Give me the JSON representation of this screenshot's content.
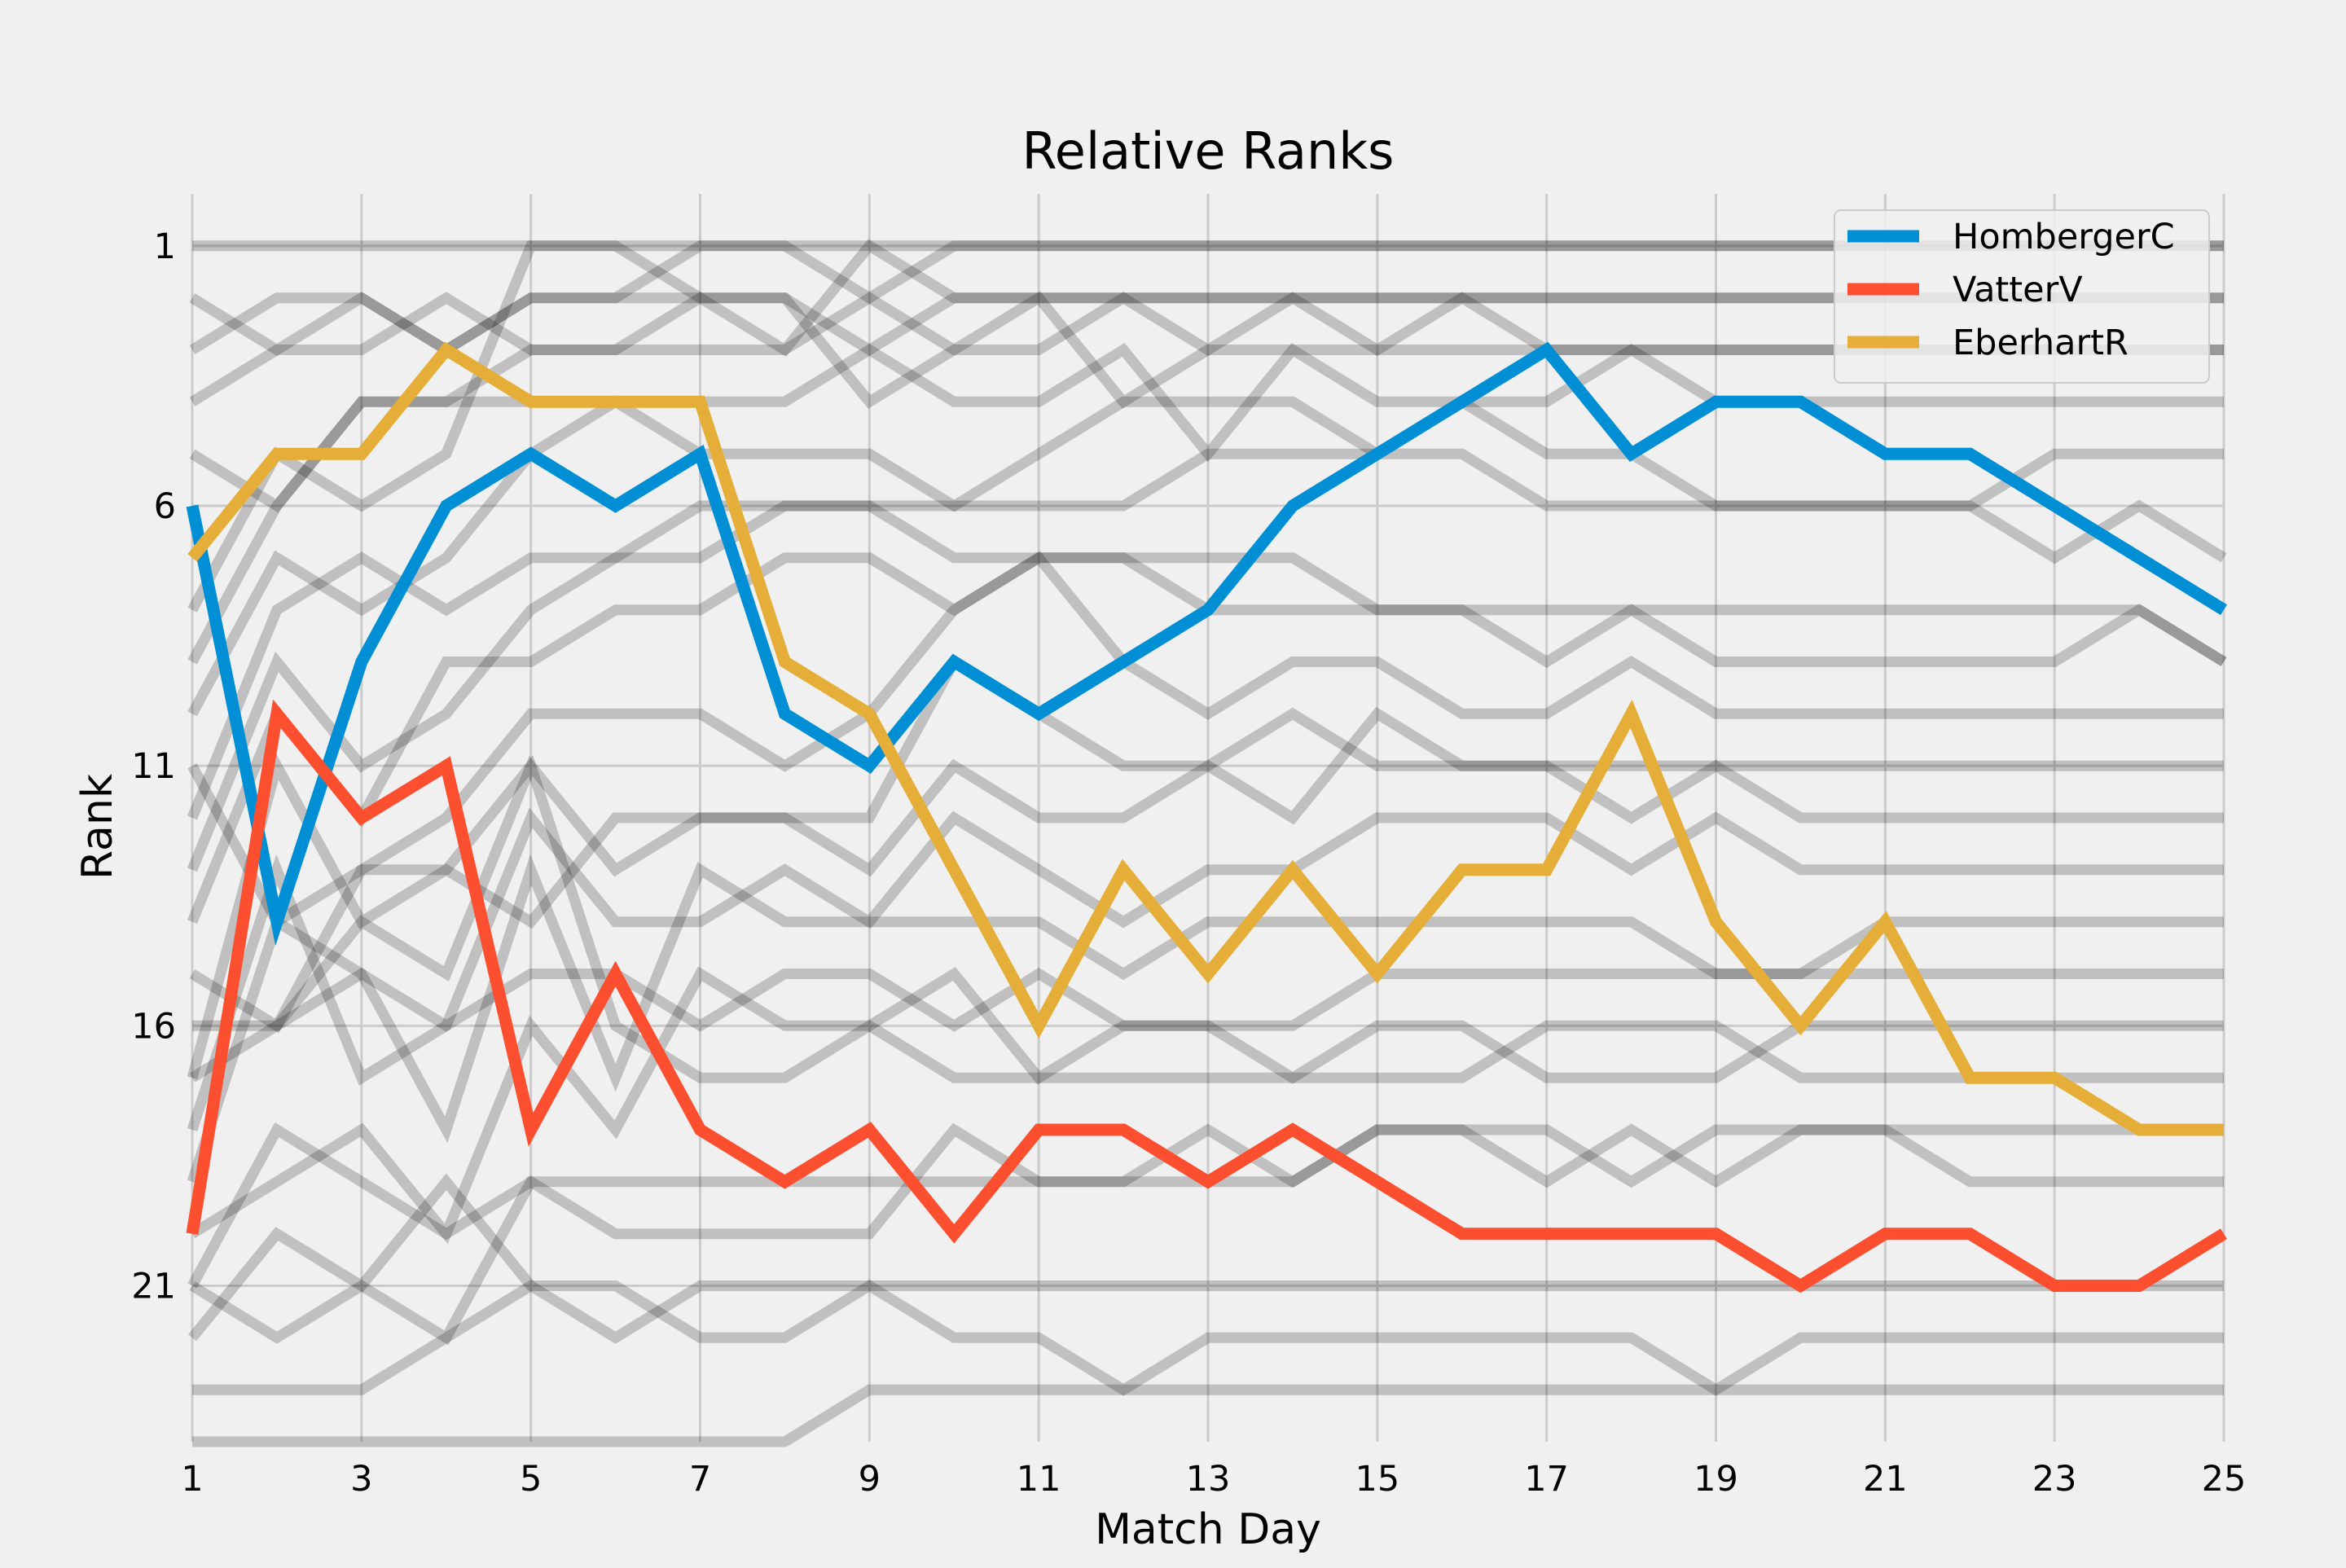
{
  "chart_data": {
    "type": "line",
    "title": "Relative Ranks",
    "xlabel": "Match Day",
    "ylabel": "Rank",
    "xlim": [
      1,
      25
    ],
    "ylim": [
      24,
      0
    ],
    "x_ticks": [
      1,
      3,
      5,
      7,
      9,
      11,
      13,
      15,
      17,
      19,
      21,
      23,
      25
    ],
    "y_ticks": [
      1,
      6,
      11,
      16,
      21
    ],
    "grid": true,
    "legend_position": "top-right",
    "x": [
      1,
      2,
      3,
      4,
      5,
      6,
      7,
      8,
      9,
      10,
      11,
      12,
      13,
      14,
      15,
      16,
      17,
      18,
      19,
      20,
      21,
      22,
      23,
      24,
      25
    ],
    "series": [
      {
        "name": "HombergerC",
        "color": "#008fd5",
        "values": [
          6,
          14,
          9,
          6,
          5,
          6,
          5,
          10,
          11,
          9,
          10,
          9,
          8,
          6,
          5,
          4,
          3,
          5,
          4,
          4,
          5,
          5,
          6,
          7,
          8
        ]
      },
      {
        "name": "VatterV",
        "color": "#fc4f30",
        "values": [
          20,
          10,
          12,
          11,
          18,
          15,
          18,
          19,
          18,
          20,
          18,
          18,
          19,
          18,
          19,
          20,
          20,
          20,
          20,
          21,
          20,
          20,
          21,
          21,
          20
        ]
      },
      {
        "name": "EberhartR",
        "color": "#e5ae38",
        "values": [
          7,
          5,
          5,
          3,
          4,
          4,
          4,
          9,
          10,
          13,
          16,
          13,
          15,
          13,
          15,
          13,
          13,
          10,
          14,
          16,
          14,
          17,
          17,
          18,
          18
        ]
      }
    ],
    "background_series_color": "#000000",
    "background_series": [
      {
        "values": [
          1,
          1,
          1,
          1,
          1,
          1,
          1,
          1,
          1,
          1,
          1,
          1,
          1,
          1,
          1,
          1,
          1,
          1,
          1,
          1,
          1,
          1,
          1,
          1,
          1
        ]
      },
      {
        "values": [
          2,
          3,
          2,
          3,
          2,
          2,
          1,
          1,
          2,
          1,
          1,
          1,
          1,
          1,
          1,
          1,
          1,
          1,
          1,
          1,
          1,
          1,
          1,
          1,
          1
        ]
      },
      {
        "values": [
          3,
          2,
          2,
          3,
          2,
          2,
          2,
          2,
          3,
          2,
          2,
          2,
          2,
          2,
          2,
          2,
          2,
          2,
          2,
          2,
          2,
          2,
          2,
          2,
          2
        ]
      },
      {
        "values": [
          4,
          3,
          3,
          2,
          3,
          3,
          2,
          3,
          1,
          2,
          2,
          2,
          2,
          2,
          2,
          2,
          2,
          2,
          2,
          2,
          2,
          2,
          2,
          2,
          2
        ]
      },
      {
        "values": [
          5,
          6,
          4,
          4,
          3,
          3,
          3,
          3,
          2,
          3,
          3,
          2,
          3,
          2,
          3,
          2,
          3,
          3,
          3,
          3,
          3,
          3,
          3,
          3,
          3
        ]
      },
      {
        "values": [
          8,
          5,
          6,
          5,
          1,
          1,
          2,
          2,
          4,
          3,
          2,
          4,
          3,
          3,
          3,
          3,
          3,
          3,
          3,
          3,
          3,
          3,
          3,
          3,
          3
        ]
      },
      {
        "values": [
          9,
          6,
          4,
          4,
          4,
          4,
          4,
          4,
          3,
          4,
          4,
          3,
          5,
          3,
          4,
          4,
          4,
          3,
          4,
          4,
          4,
          4,
          4,
          4,
          4
        ]
      },
      {
        "values": [
          10,
          7,
          8,
          7,
          5,
          4,
          5,
          5,
          5,
          6,
          5,
          4,
          4,
          4,
          5,
          4,
          5,
          5,
          6,
          6,
          6,
          6,
          5,
          5,
          5
        ]
      },
      {
        "values": [
          12,
          8,
          7,
          8,
          7,
          7,
          6,
          6,
          6,
          6,
          6,
          6,
          5,
          5,
          5,
          5,
          6,
          6,
          6,
          6,
          6,
          6,
          7,
          6,
          7
        ]
      },
      {
        "values": [
          13,
          9,
          11,
          10,
          8,
          7,
          7,
          6,
          6,
          7,
          7,
          7,
          7,
          7,
          8,
          8,
          8,
          8,
          8,
          8,
          8,
          8,
          8,
          8,
          9
        ]
      },
      {
        "values": [
          14,
          10,
          12,
          9,
          9,
          8,
          8,
          7,
          7,
          8,
          7,
          7,
          8,
          8,
          8,
          8,
          9,
          8,
          9,
          9,
          9,
          9,
          9,
          8,
          9
        ]
      },
      {
        "values": [
          15,
          16,
          13,
          12,
          10,
          10,
          10,
          11,
          10,
          8,
          7,
          9,
          10,
          9,
          9,
          10,
          10,
          9,
          10,
          10,
          10,
          10,
          10,
          10,
          10
        ]
      },
      {
        "values": [
          16,
          16,
          14,
          15,
          11,
          13,
          12,
          12,
          12,
          9,
          10,
          11,
          11,
          10,
          11,
          11,
          11,
          11,
          11,
          11,
          11,
          11,
          11,
          11,
          11
        ]
      },
      {
        "values": [
          17,
          11,
          14,
          13,
          14,
          12,
          12,
          12,
          13,
          11,
          12,
          12,
          11,
          12,
          10,
          11,
          11,
          12,
          11,
          12,
          12,
          12,
          12,
          12,
          12
        ]
      },
      {
        "values": [
          18,
          13,
          17,
          16,
          12,
          14,
          14,
          13,
          14,
          12,
          13,
          14,
          13,
          13,
          12,
          12,
          12,
          13,
          12,
          13,
          13,
          13,
          13,
          13,
          13
        ]
      },
      {
        "values": [
          19,
          14,
          15,
          18,
          13,
          17,
          13,
          14,
          14,
          14,
          14,
          15,
          14,
          14,
          14,
          14,
          14,
          14,
          15,
          15,
          14,
          14,
          14,
          14,
          14
        ]
      },
      {
        "values": [
          17,
          16,
          15,
          16,
          15,
          15,
          16,
          15,
          15,
          16,
          15,
          16,
          16,
          16,
          15,
          15,
          15,
          15,
          15,
          15,
          15,
          15,
          15,
          15,
          15
        ]
      },
      {
        "values": [
          11,
          14,
          13,
          13,
          11,
          16,
          17,
          17,
          16,
          15,
          17,
          16,
          16,
          17,
          16,
          16,
          17,
          17,
          17,
          16,
          16,
          16,
          16,
          16,
          16
        ]
      },
      {
        "values": [
          20,
          19,
          18,
          20,
          16,
          18,
          15,
          16,
          16,
          17,
          17,
          17,
          17,
          17,
          17,
          17,
          16,
          16,
          16,
          17,
          17,
          17,
          17,
          17,
          17
        ]
      },
      {
        "values": [
          21,
          18,
          19,
          20,
          19,
          20,
          20,
          20,
          20,
          18,
          19,
          19,
          18,
          19,
          18,
          18,
          19,
          18,
          19,
          18,
          18,
          18,
          18,
          18,
          18
        ]
      },
      {
        "values": [
          21,
          22,
          21,
          22,
          19,
          19,
          19,
          19,
          19,
          19,
          19,
          19,
          19,
          19,
          18,
          18,
          18,
          19,
          18,
          18,
          18,
          19,
          19,
          19,
          19
        ]
      },
      {
        "values": [
          22,
          20,
          21,
          19,
          21,
          22,
          21,
          21,
          21,
          21,
          21,
          21,
          21,
          21,
          21,
          21,
          21,
          21,
          21,
          21,
          21,
          21,
          21,
          21,
          21
        ]
      },
      {
        "values": [
          23,
          23,
          23,
          22,
          21,
          21,
          22,
          22,
          21,
          22,
          22,
          23,
          22,
          22,
          22,
          22,
          22,
          22,
          23,
          22,
          22,
          22,
          22,
          22,
          22
        ]
      },
      {
        "values": [
          24,
          24,
          24,
          24,
          24,
          24,
          24,
          24,
          23,
          23,
          23,
          23,
          23,
          23,
          23,
          23,
          23,
          23,
          23,
          23,
          23,
          23,
          23,
          23,
          23
        ]
      }
    ]
  }
}
